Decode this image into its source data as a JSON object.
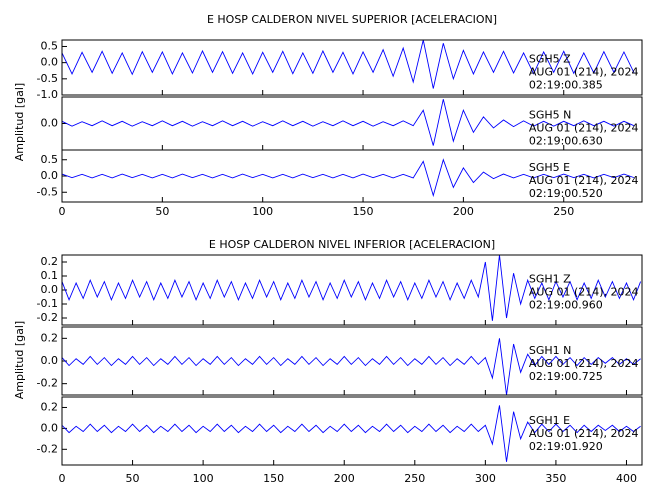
{
  "chart_data": [
    {
      "type": "line",
      "title": "E HOSP CALDERON NIVEL SUPERIOR [ACELERACION]",
      "ylabel": "Amplitud [gal]",
      "xlim": [
        0,
        289
      ],
      "xticks": [
        0,
        50,
        100,
        150,
        200,
        250
      ],
      "x": [
        0,
        5,
        10,
        15,
        20,
        25,
        30,
        35,
        40,
        45,
        50,
        55,
        60,
        65,
        70,
        75,
        80,
        85,
        90,
        95,
        100,
        105,
        110,
        115,
        120,
        125,
        130,
        135,
        140,
        145,
        150,
        155,
        160,
        165,
        170,
        175,
        180,
        185,
        190,
        195,
        200,
        205,
        210,
        215,
        220,
        225,
        230,
        235,
        240,
        245,
        250,
        255,
        260,
        265,
        270,
        275,
        280,
        285
      ],
      "panels": [
        {
          "name": "SGH5   Z",
          "date": "AUG 01 (214), 2024",
          "time": "02:19:00.385",
          "color": "#0000ff",
          "ylim": [
            -1.0,
            0.7
          ],
          "yticks": [
            {
              "value": -1.0,
              "label": "-1.0"
            },
            -0.5,
            {
              "value": 0,
              "label": "0.0"
            },
            0.5
          ],
          "values": [
            0.3,
            -0.35,
            0.32,
            -0.3,
            0.35,
            -0.33,
            0.3,
            -0.36,
            0.34,
            -0.3,
            0.33,
            -0.35,
            0.3,
            -0.32,
            0.36,
            -0.3,
            0.34,
            -0.33,
            0.3,
            -0.35,
            0.32,
            -0.3,
            0.35,
            -0.34,
            0.3,
            -0.33,
            0.36,
            -0.3,
            0.32,
            -0.35,
            0.33,
            -0.3,
            0.4,
            -0.42,
            0.45,
            -0.6,
            0.7,
            -0.8,
            0.6,
            -0.5,
            0.38,
            -0.35,
            0.33,
            -0.3,
            0.35,
            -0.32,
            0.3,
            -0.34,
            0.33,
            -0.3,
            0.35,
            -0.33,
            0.3,
            -0.32,
            0.34,
            -0.3,
            0.33,
            -0.31
          ]
        },
        {
          "name": "SGH5   N",
          "date": "AUG 01 (214), 2024",
          "time": "02:19:00.630",
          "color": "#0000ff",
          "ylim": [
            -0.6,
            0.6
          ],
          "yticks": [
            {
              "value": 0,
              "label": "0.0"
            }
          ],
          "values": [
            0.05,
            -0.06,
            0.04,
            -0.05,
            0.06,
            -0.05,
            0.05,
            -0.06,
            0.04,
            -0.05,
            0.06,
            -0.05,
            0.05,
            -0.06,
            0.04,
            -0.05,
            0.06,
            -0.05,
            0.05,
            -0.06,
            0.04,
            -0.05,
            0.06,
            -0.05,
            0.05,
            -0.06,
            0.04,
            -0.05,
            0.06,
            -0.05,
            0.05,
            -0.06,
            0.04,
            -0.05,
            0.06,
            -0.05,
            0.3,
            -0.5,
            0.55,
            -0.4,
            0.3,
            -0.2,
            0.15,
            -0.1,
            0.08,
            -0.07,
            0.06,
            -0.06,
            0.05,
            -0.06,
            0.05,
            -0.05,
            0.06,
            -0.05,
            0.05,
            -0.06,
            0.05,
            -0.05
          ]
        },
        {
          "name": "SGH5   E",
          "date": "AUG 01 (214), 2024",
          "time": "02:19:00.520",
          "color": "#0000ff",
          "ylim": [
            -0.8,
            0.8
          ],
          "yticks": [
            -0.5,
            {
              "value": 0,
              "label": "0.0"
            },
            0.5
          ],
          "values": [
            0.06,
            -0.05,
            0.05,
            -0.06,
            0.05,
            -0.06,
            0.06,
            -0.05,
            0.05,
            -0.06,
            0.05,
            -0.06,
            0.06,
            -0.05,
            0.05,
            -0.06,
            0.05,
            -0.06,
            0.06,
            -0.05,
            0.05,
            -0.06,
            0.05,
            -0.06,
            0.06,
            -0.05,
            0.05,
            -0.06,
            0.05,
            -0.06,
            0.06,
            -0.05,
            0.05,
            -0.06,
            0.05,
            -0.06,
            0.45,
            -0.6,
            0.5,
            -0.35,
            0.25,
            -0.2,
            0.12,
            -0.08,
            0.06,
            -0.06,
            0.05,
            -0.06,
            0.05,
            -0.05,
            0.06,
            -0.05,
            0.05,
            -0.06,
            0.05,
            -0.05,
            0.06,
            -0.05
          ]
        }
      ]
    },
    {
      "type": "line",
      "title": "E HOSP CALDERON NIVEL INFERIOR [ACELERACION]",
      "ylabel": "Amplitud [gal]",
      "xlim": [
        0,
        411
      ],
      "xticks": [
        0,
        50,
        100,
        150,
        200,
        250,
        300,
        350,
        400
      ],
      "x": [
        0,
        5,
        10,
        15,
        20,
        25,
        30,
        35,
        40,
        45,
        50,
        55,
        60,
        65,
        70,
        75,
        80,
        85,
        90,
        95,
        100,
        105,
        110,
        115,
        120,
        125,
        130,
        135,
        140,
        145,
        150,
        155,
        160,
        165,
        170,
        175,
        180,
        185,
        190,
        195,
        200,
        205,
        210,
        215,
        220,
        225,
        230,
        235,
        240,
        245,
        250,
        255,
        260,
        265,
        270,
        275,
        280,
        285,
        290,
        295,
        300,
        305,
        310,
        315,
        320,
        325,
        330,
        335,
        340,
        345,
        350,
        355,
        360,
        365,
        370,
        375,
        380,
        385,
        390,
        395,
        400,
        405,
        410
      ],
      "panels": [
        {
          "name": "SGH1   Z",
          "date": "AUG 01 (214), 2024",
          "time": "02:19:00.960",
          "color": "#0000ff",
          "ylim": [
            -0.25,
            0.25
          ],
          "yticks": [
            -0.2,
            -0.1,
            {
              "value": 0,
              "label": "0.0"
            },
            0.1,
            0.2
          ],
          "values": [
            0.06,
            -0.07,
            0.05,
            -0.06,
            0.07,
            -0.05,
            0.06,
            -0.07,
            0.05,
            -0.06,
            0.07,
            -0.05,
            0.06,
            -0.07,
            0.05,
            -0.06,
            0.07,
            -0.05,
            0.06,
            -0.07,
            0.05,
            -0.06,
            0.07,
            -0.05,
            0.06,
            -0.07,
            0.05,
            -0.06,
            0.07,
            -0.05,
            0.06,
            -0.07,
            0.05,
            -0.06,
            0.07,
            -0.05,
            0.06,
            -0.07,
            0.05,
            -0.06,
            0.07,
            -0.05,
            0.06,
            -0.07,
            0.05,
            -0.06,
            0.07,
            -0.05,
            0.06,
            -0.07,
            0.05,
            -0.06,
            0.07,
            -0.05,
            0.06,
            -0.07,
            0.05,
            -0.06,
            0.07,
            -0.05,
            0.2,
            -0.22,
            0.25,
            -0.2,
            0.12,
            -0.1,
            0.07,
            -0.06,
            0.05,
            -0.07,
            0.06,
            -0.05,
            0.06,
            -0.07,
            0.05,
            -0.06,
            0.07,
            -0.05,
            0.06,
            -0.06,
            0.05,
            -0.07,
            0.06
          ]
        },
        {
          "name": "SGH1   N",
          "date": "AUG 01 (214), 2024",
          "time": "02:19:00.725",
          "color": "#0000ff",
          "ylim": [
            -0.3,
            0.3
          ],
          "yticks": [
            -0.2,
            {
              "value": 0,
              "label": "0.0"
            },
            0.2
          ],
          "values": [
            0.03,
            -0.04,
            0.02,
            -0.03,
            0.04,
            -0.03,
            0.03,
            -0.04,
            0.02,
            -0.03,
            0.04,
            -0.03,
            0.03,
            -0.04,
            0.02,
            -0.03,
            0.04,
            -0.03,
            0.03,
            -0.04,
            0.02,
            -0.03,
            0.04,
            -0.03,
            0.03,
            -0.04,
            0.02,
            -0.03,
            0.04,
            -0.03,
            0.03,
            -0.04,
            0.02,
            -0.03,
            0.04,
            -0.03,
            0.03,
            -0.04,
            0.02,
            -0.03,
            0.04,
            -0.03,
            0.03,
            -0.04,
            0.02,
            -0.03,
            0.04,
            -0.03,
            0.03,
            -0.04,
            0.02,
            -0.03,
            0.04,
            -0.03,
            0.03,
            -0.04,
            0.02,
            -0.03,
            0.04,
            -0.03,
            0.03,
            -0.15,
            0.2,
            -0.3,
            0.15,
            -0.1,
            0.06,
            -0.04,
            0.04,
            -0.03,
            0.04,
            -0.03,
            0.03,
            -0.04,
            0.03,
            -0.03,
            0.03,
            -0.02,
            0.03,
            -0.03,
            0.02,
            -0.03,
            0.02
          ]
        },
        {
          "name": "SGH1   E",
          "date": "AUG 01 (214), 2024",
          "time": "02:19:01.920",
          "color": "#0000ff",
          "ylim": [
            -0.35,
            0.3
          ],
          "yticks": [
            -0.2,
            {
              "value": 0,
              "label": "0.0"
            },
            0.2
          ],
          "values": [
            0.03,
            -0.04,
            0.02,
            -0.03,
            0.04,
            -0.03,
            0.03,
            -0.04,
            0.02,
            -0.03,
            0.04,
            -0.03,
            0.03,
            -0.04,
            0.02,
            -0.03,
            0.04,
            -0.03,
            0.03,
            -0.04,
            0.02,
            -0.03,
            0.04,
            -0.03,
            0.03,
            -0.04,
            0.02,
            -0.03,
            0.04,
            -0.03,
            0.03,
            -0.04,
            0.02,
            -0.03,
            0.04,
            -0.03,
            0.03,
            -0.04,
            0.02,
            -0.03,
            0.04,
            -0.03,
            0.03,
            -0.04,
            0.02,
            -0.03,
            0.04,
            -0.03,
            0.03,
            -0.04,
            0.02,
            -0.03,
            0.04,
            -0.03,
            0.03,
            -0.04,
            0.02,
            -0.03,
            0.04,
            -0.03,
            0.03,
            -0.15,
            0.22,
            -0.32,
            0.16,
            -0.1,
            0.06,
            -0.04,
            0.04,
            -0.03,
            0.04,
            -0.03,
            0.03,
            -0.04,
            0.03,
            -0.03,
            0.03,
            -0.02,
            0.03,
            -0.03,
            0.02,
            -0.03,
            0.02
          ]
        }
      ]
    }
  ]
}
